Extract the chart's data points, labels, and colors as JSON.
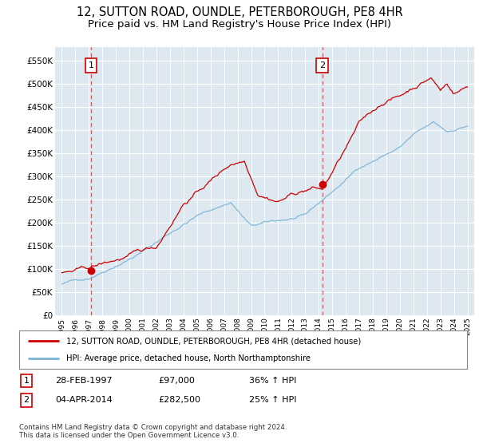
{
  "title": "12, SUTTON ROAD, OUNDLE, PETERBOROUGH, PE8 4HR",
  "subtitle": "Price paid vs. HM Land Registry's House Price Index (HPI)",
  "legend_line1": "12, SUTTON ROAD, OUNDLE, PETERBOROUGH, PE8 4HR (detached house)",
  "legend_line2": "HPI: Average price, detached house, North Northamptonshire",
  "footnote": "Contains HM Land Registry data © Crown copyright and database right 2024.\nThis data is licensed under the Open Government Licence v3.0.",
  "sale1_date": 1997.16,
  "sale1_price": 97000,
  "sale1_label": "1",
  "sale2_date": 2014.27,
  "sale2_price": 282500,
  "sale2_label": "2",
  "table": [
    {
      "num": "1",
      "date": "28-FEB-1997",
      "price": "£97,000",
      "hpi": "36% ↑ HPI"
    },
    {
      "num": "2",
      "date": "04-APR-2014",
      "price": "£282,500",
      "hpi": "25% ↑ HPI"
    }
  ],
  "xlim": [
    1994.5,
    2025.5
  ],
  "ylim": [
    0,
    580000
  ],
  "yticks": [
    0,
    50000,
    100000,
    150000,
    200000,
    250000,
    300000,
    350000,
    400000,
    450000,
    500000,
    550000
  ],
  "background_color": "#dde8f0",
  "hpi_color": "#7ab3d4",
  "sale_color": "#cc0000",
  "grid_color": "#ffffff",
  "title_fontsize": 10.5,
  "subtitle_fontsize": 9.5
}
